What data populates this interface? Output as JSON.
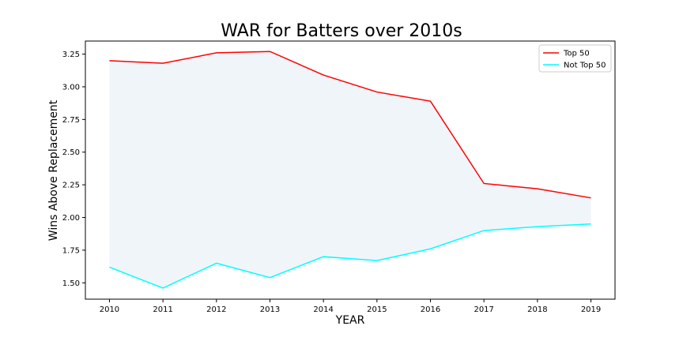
{
  "chart_data": {
    "type": "line",
    "title": "WAR for Batters over 2010s",
    "xlabel": "YEAR",
    "ylabel": "Wins Above Replacement",
    "x": [
      2010,
      2011,
      2012,
      2013,
      2014,
      2015,
      2016,
      2017,
      2018,
      2019
    ],
    "xlim": [
      2009.55,
      2019.45
    ],
    "ylim": [
      1.375,
      3.35
    ],
    "yticks": [
      "1.50",
      "1.75",
      "2.00",
      "2.25",
      "2.50",
      "2.75",
      "3.00",
      "3.25"
    ],
    "series": [
      {
        "name": "Top 50",
        "color": "#ff0000",
        "values": [
          3.2,
          3.18,
          3.26,
          3.27,
          3.09,
          2.96,
          2.89,
          2.26,
          2.22,
          2.15
        ]
      },
      {
        "name": "Not Top 50",
        "color": "#00ffff",
        "values": [
          1.62,
          1.46,
          1.65,
          1.54,
          1.7,
          1.67,
          1.76,
          1.9,
          1.93,
          1.95
        ]
      }
    ],
    "fill_between": {
      "color": "#f0f5fa"
    },
    "legend": "top-right",
    "grid": false
  }
}
